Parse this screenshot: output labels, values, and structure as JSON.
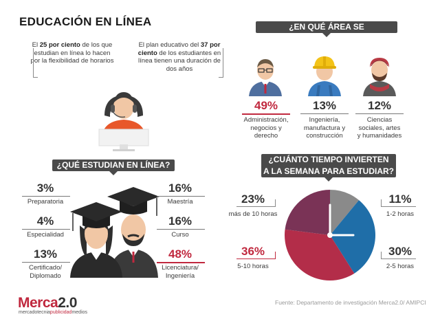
{
  "title": "EDUCACIÓN EN LÍNEA",
  "note_left": {
    "lead": "El ",
    "bold": "25 por ciento",
    "rest": " de los que estudian en línea lo hacen por la flexibilidad de horarios"
  },
  "note_right": {
    "lead": "El plan educativo del ",
    "bold": "37 por ciento",
    "rest": " de los estudiantes en línea tienen una duración de dos años"
  },
  "area_banner": "¿EN QUÉ ÁREA SE DESENVUELVEN?",
  "areas": [
    {
      "pct": "49%",
      "label_lines": [
        "Administración,",
        "negocios y",
        "derecho"
      ]
    },
    {
      "pct": "13%",
      "label_lines": [
        "Ingeniería,",
        "manufactura y",
        "construcción"
      ]
    },
    {
      "pct": "12%",
      "label_lines": [
        "Ciencias",
        "sociales, artes",
        "y humanidades"
      ]
    }
  ],
  "study_banner": "¿QUÉ ESTUDIAN EN LÍNEA?",
  "study_left": [
    {
      "pct": "3%",
      "label_lines": [
        "Preparatoria"
      ]
    },
    {
      "pct": "4%",
      "label_lines": [
        "Especialidad"
      ]
    },
    {
      "pct": "13%",
      "label_lines": [
        "Certificado/",
        "Diplomado"
      ]
    }
  ],
  "study_right": [
    {
      "pct": "16%",
      "label_lines": [
        "Maestría"
      ]
    },
    {
      "pct": "16%",
      "label_lines": [
        "Curso"
      ]
    },
    {
      "pct": "48%",
      "label_lines": [
        "Licenciatura/",
        "Ingeniería"
      ]
    }
  ],
  "time_banner_lines": [
    "¿CUÁNTO TIEMPO INVIERTEN",
    "A LA SEMANA PARA ESTUDIAR?"
  ],
  "chart_data": {
    "type": "pie",
    "title": "¿CUÁNTO TIEMPO INVIERTEN A LA SEMANA PARA ESTUDIAR?",
    "slices": [
      {
        "label": "1-2 horas",
        "value": 11,
        "pct": "11%",
        "color": "#8a8a8a"
      },
      {
        "label": "2-5 horas",
        "value": 30,
        "pct": "30%",
        "color": "#1f6ea8"
      },
      {
        "label": "5-10 horas",
        "value": 36,
        "pct": "36%",
        "color": "#b32d49"
      },
      {
        "label": "más de 10 horas",
        "value": 23,
        "pct": "23%",
        "color": "#7a3356"
      }
    ]
  },
  "brand": {
    "merca": "Merca",
    "num": "2.0",
    "tag_a": "mercadotecnia",
    "tag_b": "publicidad",
    "tag_c": "medios"
  },
  "source": "Fuente: Departamento de investigación Merca2.0/ AMIPCI",
  "colors": {
    "accent_red": "#c0283e",
    "banner": "#4a4a4a"
  }
}
